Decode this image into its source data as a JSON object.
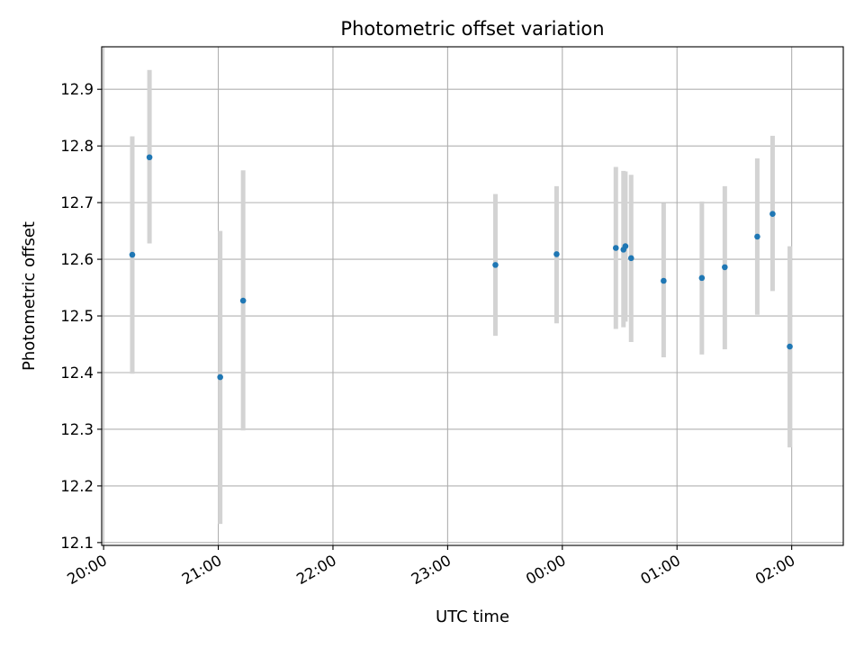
{
  "chart_data": {
    "type": "scatter",
    "title": "Photometric offset variation",
    "xlabel": "UTC time",
    "ylabel": "Photometric offset",
    "x_unit": "time (HH:MM, UTC)",
    "x_ticks": [
      "20:00",
      "21:00",
      "22:00",
      "23:00",
      "00:00",
      "01:00",
      "02:00"
    ],
    "y_ticks": [
      12.1,
      12.2,
      12.3,
      12.4,
      12.5,
      12.6,
      12.7,
      12.8,
      12.9
    ],
    "xlim": [
      "19:59",
      "02:27"
    ],
    "ylim": [
      12.095,
      12.975
    ],
    "grid": true,
    "point_color": "#1f77b4",
    "errorbar_color": "#d3d3d3",
    "points": [
      {
        "time": "20:15",
        "y": 12.608,
        "err_low": 12.398,
        "err_high": 12.817
      },
      {
        "time": "20:24",
        "y": 12.78,
        "err_low": 12.628,
        "err_high": 12.934
      },
      {
        "time": "21:01",
        "y": 12.392,
        "err_low": 12.133,
        "err_high": 12.65
      },
      {
        "time": "21:13",
        "y": 12.527,
        "err_low": 12.298,
        "err_high": 12.757
      },
      {
        "time": "23:25",
        "y": 12.59,
        "err_low": 12.465,
        "err_high": 12.715
      },
      {
        "time": "23:57",
        "y": 12.609,
        "err_low": 12.487,
        "err_high": 12.729
      },
      {
        "time": "00:28",
        "y": 12.62,
        "err_low": 12.477,
        "err_high": 12.763
      },
      {
        "time": "00:32",
        "y": 12.617,
        "err_low": 12.48,
        "err_high": 12.756
      },
      {
        "time": "00:33",
        "y": 12.623,
        "err_low": 12.49,
        "err_high": 12.755
      },
      {
        "time": "00:36",
        "y": 12.602,
        "err_low": 12.454,
        "err_high": 12.749
      },
      {
        "time": "00:53",
        "y": 12.562,
        "err_low": 12.427,
        "err_high": 12.699
      },
      {
        "time": "01:13",
        "y": 12.567,
        "err_low": 12.432,
        "err_high": 12.702
      },
      {
        "time": "01:25",
        "y": 12.586,
        "err_low": 12.441,
        "err_high": 12.729
      },
      {
        "time": "01:42",
        "y": 12.64,
        "err_low": 12.502,
        "err_high": 12.778
      },
      {
        "time": "01:50",
        "y": 12.68,
        "err_low": 12.544,
        "err_high": 12.818
      },
      {
        "time": "01:59",
        "y": 12.446,
        "err_low": 12.268,
        "err_high": 12.623
      }
    ]
  }
}
